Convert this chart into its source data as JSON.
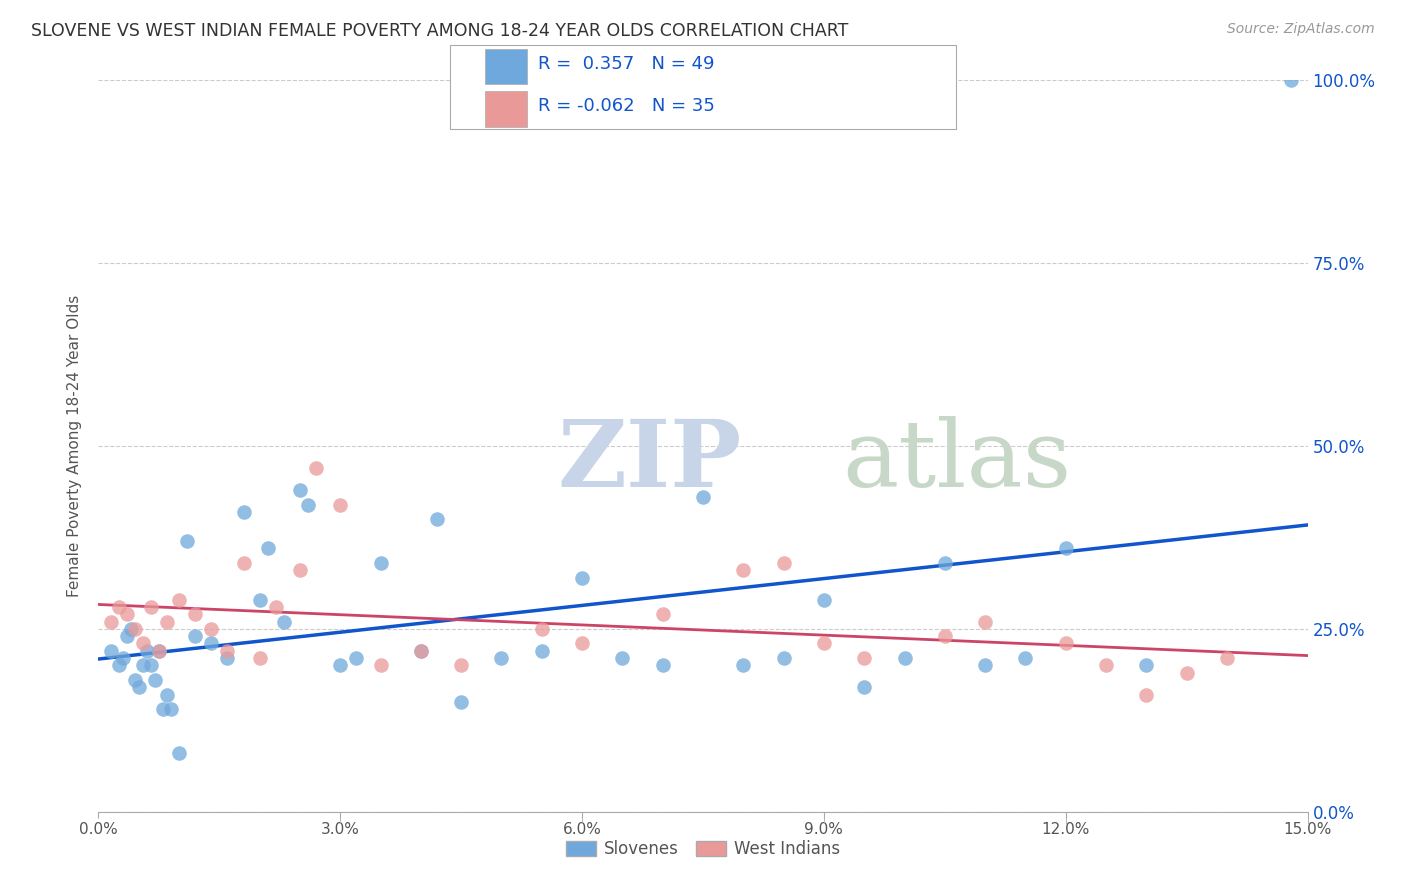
{
  "title": "SLOVENE VS WEST INDIAN FEMALE POVERTY AMONG 18-24 YEAR OLDS CORRELATION CHART",
  "source": "Source: ZipAtlas.com",
  "ylabel": "Female Poverty Among 18-24 Year Olds",
  "xlim": [
    0.0,
    15.0
  ],
  "ylim": [
    0.0,
    100.0
  ],
  "yticks": [
    0.0,
    25.0,
    50.0,
    75.0,
    100.0
  ],
  "xticks": [
    0.0,
    3.0,
    6.0,
    9.0,
    12.0,
    15.0
  ],
  "slovene_R": 0.357,
  "slovene_N": 49,
  "westindian_R": -0.062,
  "westindian_N": 35,
  "slovene_color": "#6fa8dc",
  "westindian_color": "#ea9999",
  "slovene_line_color": "#1155cc",
  "westindian_line_color": "#cc4466",
  "watermark_zip": "ZIP",
  "watermark_atlas": "atlas",
  "watermark_color_zip": "#c8d4e8",
  "watermark_color_atlas": "#c8d8c8",
  "slovene_x": [
    0.15,
    0.25,
    0.3,
    0.35,
    0.4,
    0.45,
    0.5,
    0.55,
    0.6,
    0.65,
    0.7,
    0.75,
    0.8,
    0.85,
    0.9,
    1.0,
    1.1,
    1.2,
    1.4,
    1.6,
    1.8,
    2.0,
    2.1,
    2.3,
    2.5,
    2.6,
    3.0,
    3.2,
    3.5,
    4.0,
    4.2,
    4.5,
    5.0,
    5.5,
    6.0,
    6.5,
    7.0,
    7.5,
    8.0,
    8.5,
    9.0,
    9.5,
    10.0,
    10.5,
    11.0,
    11.5,
    12.0,
    13.0,
    14.8
  ],
  "slovene_y": [
    22,
    20,
    21,
    24,
    25,
    18,
    17,
    20,
    22,
    20,
    18,
    22,
    14,
    16,
    14,
    8,
    37,
    24,
    23,
    21,
    41,
    29,
    36,
    26,
    44,
    42,
    20,
    21,
    34,
    22,
    40,
    15,
    21,
    22,
    32,
    21,
    20,
    43,
    20,
    21,
    29,
    17,
    21,
    34,
    20,
    21,
    36,
    20,
    100
  ],
  "westindian_x": [
    0.15,
    0.25,
    0.35,
    0.45,
    0.55,
    0.65,
    0.75,
    0.85,
    1.0,
    1.2,
    1.4,
    1.6,
    1.8,
    2.0,
    2.2,
    2.5,
    2.7,
    3.0,
    3.5,
    4.0,
    4.5,
    5.5,
    6.0,
    7.0,
    8.0,
    8.5,
    9.0,
    9.5,
    10.5,
    11.0,
    12.0,
    12.5,
    13.0,
    13.5,
    14.0
  ],
  "westindian_y": [
    26,
    28,
    27,
    25,
    23,
    28,
    22,
    26,
    29,
    27,
    25,
    22,
    34,
    21,
    28,
    33,
    47,
    42,
    20,
    22,
    20,
    25,
    23,
    27,
    33,
    34,
    23,
    21,
    24,
    26,
    23,
    20,
    16,
    19,
    21
  ]
}
